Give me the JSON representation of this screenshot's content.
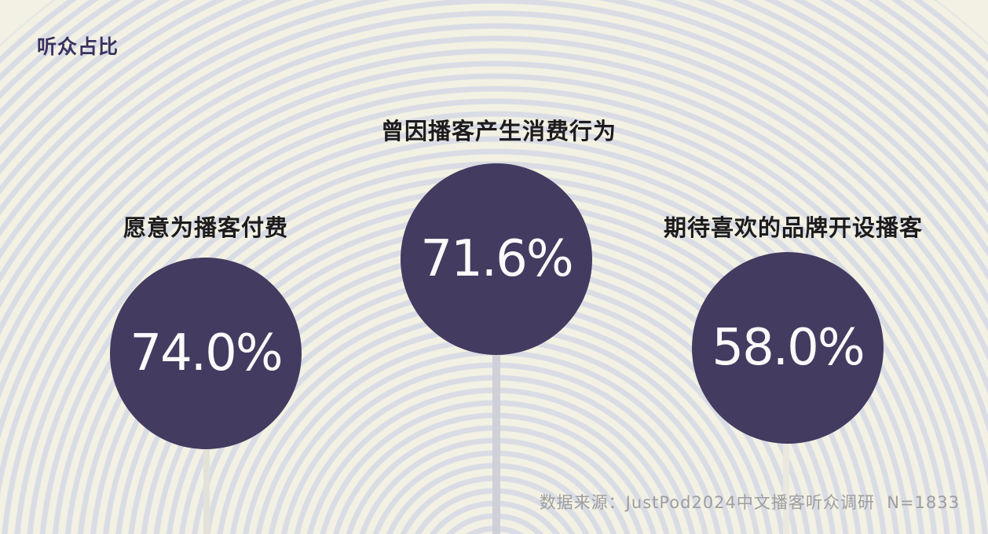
{
  "title": "听众占比",
  "colors": {
    "background": "#f2f1e3",
    "ring": "#dadce5",
    "circle": "#443b60",
    "title-text": "#3a3160",
    "label-text": "#1d1b1c",
    "value-text": "#fafafa",
    "source-text": "#9e9da0"
  },
  "items": [
    {
      "label": "愿意为播客付费",
      "value": "74.0%"
    },
    {
      "label": "曾因播客产生消费行为",
      "value": "71.6%"
    },
    {
      "label": "期待喜欢的品牌开设播客",
      "value": "58.0%"
    }
  ],
  "source_note": "数据来源：JustPod2024中文播客听众调研  N=1833",
  "chart_data": {
    "type": "bar",
    "variant": "lollipop-circle-infographic",
    "title": "听众占比",
    "categories": [
      "愿意为播客付费",
      "曾因播客产生消费行为",
      "期待喜欢的品牌开设播客"
    ],
    "values": [
      74.0,
      71.6,
      58.0
    ],
    "unit": "%",
    "value_labels": [
      "74.0%",
      "71.6%",
      "58.0%"
    ],
    "source": "数据来源：JustPod2024中文播客听众调研 N=1833",
    "legend_position": "none",
    "grid": false,
    "background_motif": "concentric-rings"
  }
}
